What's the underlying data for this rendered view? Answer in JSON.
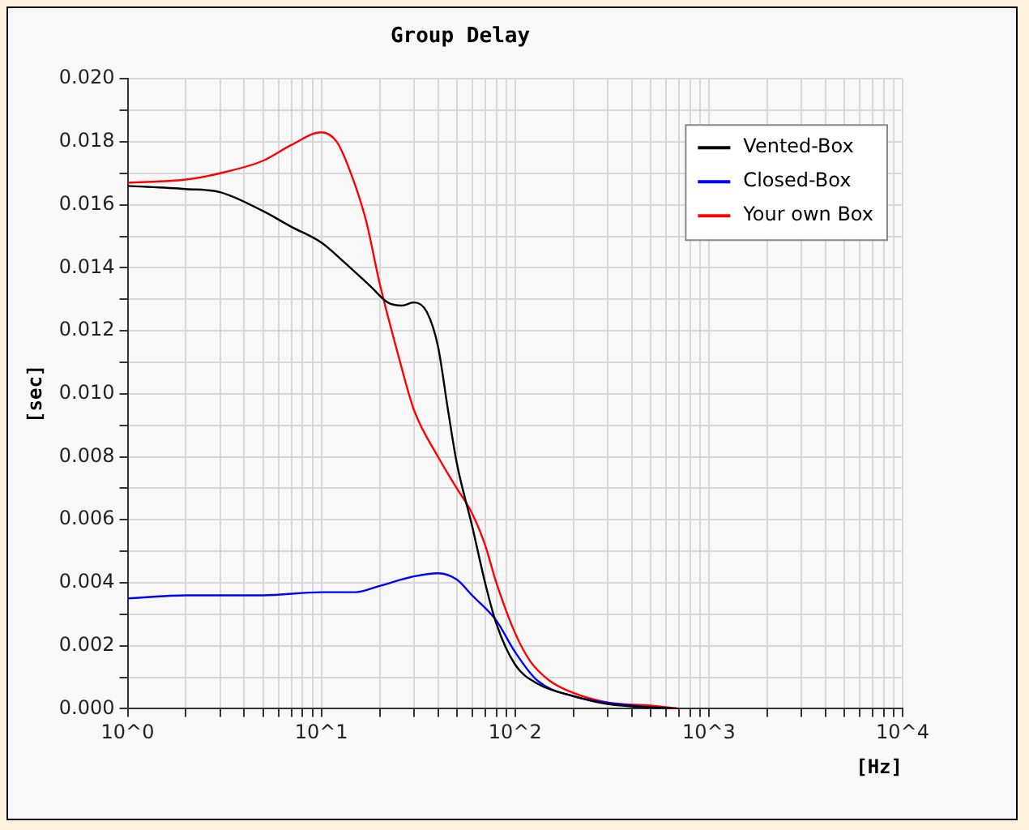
{
  "chart_data": {
    "type": "line",
    "title": "Group Delay",
    "xlabel": "[Hz]",
    "ylabel": "[sec]",
    "log": "x",
    "grid": true,
    "legend": "top right",
    "marker": "none",
    "line_style": "solid",
    "xlim": [
      1,
      10000
    ],
    "xticks": [
      {
        "value": 1,
        "label": "10^0"
      },
      {
        "value": 2,
        "label": null
      },
      {
        "value": 3,
        "label": null
      },
      {
        "value": 4,
        "label": null
      },
      {
        "value": 5,
        "label": null
      },
      {
        "value": 6,
        "label": null
      },
      {
        "value": 7,
        "label": null
      },
      {
        "value": 8,
        "label": null
      },
      {
        "value": 9,
        "label": null
      },
      {
        "value": 10,
        "label": "10^1"
      },
      {
        "value": 20,
        "label": null
      },
      {
        "value": 30,
        "label": null
      },
      {
        "value": 40,
        "label": null
      },
      {
        "value": 50,
        "label": null
      },
      {
        "value": 60,
        "label": null
      },
      {
        "value": 70,
        "label": null
      },
      {
        "value": 80,
        "label": null
      },
      {
        "value": 90,
        "label": null
      },
      {
        "value": 100,
        "label": "10^2"
      },
      {
        "value": 200,
        "label": null
      },
      {
        "value": 300,
        "label": null
      },
      {
        "value": 400,
        "label": null
      },
      {
        "value": 500,
        "label": null
      },
      {
        "value": 600,
        "label": null
      },
      {
        "value": 700,
        "label": null
      },
      {
        "value": 800,
        "label": null
      },
      {
        "value": 900,
        "label": null
      },
      {
        "value": 1000,
        "label": "10^3"
      },
      {
        "value": 2000,
        "label": null
      },
      {
        "value": 3000,
        "label": null
      },
      {
        "value": 4000,
        "label": null
      },
      {
        "value": 5000,
        "label": null
      },
      {
        "value": 6000,
        "label": null
      },
      {
        "value": 7000,
        "label": null
      },
      {
        "value": 8000,
        "label": null
      },
      {
        "value": 9000,
        "label": null
      },
      {
        "value": 10000,
        "label": "10^4"
      }
    ],
    "ylim": [
      0,
      0.02
    ],
    "yticks": [
      {
        "value": 0,
        "label": "0.000"
      },
      {
        "value": 0.001,
        "label": null
      },
      {
        "value": 0.002,
        "label": "0.002"
      },
      {
        "value": 0.003,
        "label": null
      },
      {
        "value": 0.004,
        "label": "0.004"
      },
      {
        "value": 0.005,
        "label": null
      },
      {
        "value": 0.006,
        "label": "0.006"
      },
      {
        "value": 0.007,
        "label": null
      },
      {
        "value": 0.008,
        "label": "0.008"
      },
      {
        "value": 0.009,
        "label": null
      },
      {
        "value": 0.01,
        "label": "0.010"
      },
      {
        "value": 0.011,
        "label": null
      },
      {
        "value": 0.012,
        "label": "0.012"
      },
      {
        "value": 0.013,
        "label": null
      },
      {
        "value": 0.014,
        "label": "0.014"
      },
      {
        "value": 0.015,
        "label": null
      },
      {
        "value": 0.016,
        "label": "0.016"
      },
      {
        "value": 0.017,
        "label": null
      },
      {
        "value": 0.018,
        "label": "0.018"
      },
      {
        "value": 0.019,
        "label": null
      },
      {
        "value": 0.02,
        "label": "0.020"
      }
    ],
    "series": [
      {
        "name": "Vented-Box",
        "color": "#000000",
        "x": [
          1,
          2,
          3,
          5,
          7,
          10,
          13,
          18,
          22,
          26,
          30,
          35,
          40,
          45,
          50,
          60,
          70,
          80,
          100,
          130,
          200,
          300,
          700
        ],
        "values": [
          0.0166,
          0.0165,
          0.0164,
          0.0158,
          0.0153,
          0.0148,
          0.0142,
          0.0134,
          0.0129,
          0.0128,
          0.0129,
          0.0126,
          0.0115,
          0.0095,
          0.0078,
          0.0058,
          0.004,
          0.0027,
          0.0014,
          0.0008,
          0.0004,
          0.00015,
          0
        ]
      },
      {
        "name": "Closed-Box",
        "color": "#0000ff",
        "x": [
          1,
          2,
          5,
          10,
          15,
          20,
          30,
          40,
          50,
          60,
          80,
          100,
          130,
          200,
          400,
          600
        ],
        "values": [
          0.0035,
          0.0036,
          0.0036,
          0.0037,
          0.0037,
          0.0039,
          0.0042,
          0.0043,
          0.0041,
          0.0036,
          0.0028,
          0.0018,
          0.0009,
          0.0004,
          0.0001,
          0
        ]
      },
      {
        "name": "Your own Box",
        "color": "#ff0000",
        "x": [
          1,
          2,
          3,
          5,
          7,
          10,
          12,
          14,
          17,
          20,
          25,
          30,
          40,
          50,
          60,
          70,
          80,
          100,
          120,
          150,
          200,
          300,
          500,
          700
        ],
        "values": [
          0.0167,
          0.0168,
          0.017,
          0.0174,
          0.0179,
          0.0183,
          0.018,
          0.0171,
          0.0155,
          0.0135,
          0.0112,
          0.0095,
          0.008,
          0.007,
          0.0062,
          0.0052,
          0.004,
          0.0024,
          0.0015,
          0.0009,
          0.0005,
          0.0002,
          0.0001,
          0
        ]
      }
    ]
  }
}
